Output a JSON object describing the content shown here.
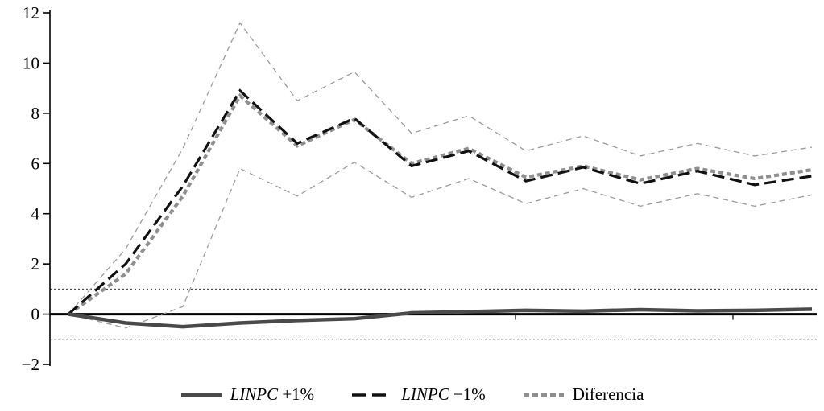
{
  "chart_data": {
    "type": "line",
    "title": "",
    "xlabel": "",
    "ylabel": "",
    "ylim": [
      -2,
      12
    ],
    "yticks": [
      -2,
      0,
      2,
      4,
      6,
      8,
      10,
      12
    ],
    "ytick_labels": [
      "−2",
      "0",
      "2",
      "4",
      "6",
      "8",
      "10",
      "12"
    ],
    "guides": [
      1,
      -1
    ],
    "x_count": 14,
    "series": [
      {
        "id": "linpc_plus1",
        "legend_em": "LINPC",
        "legend_rest": " +1%",
        "values": [
          0,
          -0.35,
          -0.5,
          -0.35,
          -0.25,
          -0.18,
          0.05,
          0.1,
          0.15,
          0.12,
          0.18,
          0.13,
          0.15,
          0.2
        ]
      },
      {
        "id": "linpc_minus1",
        "legend_em": "LINPC",
        "legend_rest": " −1%",
        "values": [
          0,
          2.0,
          5.1,
          8.9,
          6.8,
          7.8,
          5.9,
          6.5,
          5.3,
          5.85,
          5.2,
          5.7,
          5.15,
          5.5
        ]
      },
      {
        "id": "diferencia",
        "legend_em": "",
        "legend_rest": "Diferencia",
        "values": [
          0,
          1.6,
          4.7,
          8.7,
          6.7,
          7.75,
          6.0,
          6.6,
          5.45,
          5.9,
          5.35,
          5.8,
          5.4,
          5.75
        ]
      },
      {
        "id": "upper_band",
        "values": [
          0,
          2.6,
          6.6,
          11.6,
          8.5,
          9.65,
          7.2,
          7.9,
          6.5,
          7.1,
          6.3,
          6.8,
          6.3,
          6.65
        ]
      },
      {
        "id": "lower_band",
        "values": [
          0,
          -0.55,
          0.3,
          5.8,
          4.7,
          6.05,
          4.65,
          5.4,
          4.4,
          5.0,
          4.3,
          4.8,
          4.3,
          4.75
        ]
      }
    ],
    "colors": {
      "linpc_plus1": "#4a4a4a",
      "linpc_minus1": "#111111",
      "diferencia": "#8f8f8f",
      "band": "#9b9b9b",
      "axis": "#000000",
      "guide": "#333333"
    },
    "legend_position": "bottom"
  }
}
